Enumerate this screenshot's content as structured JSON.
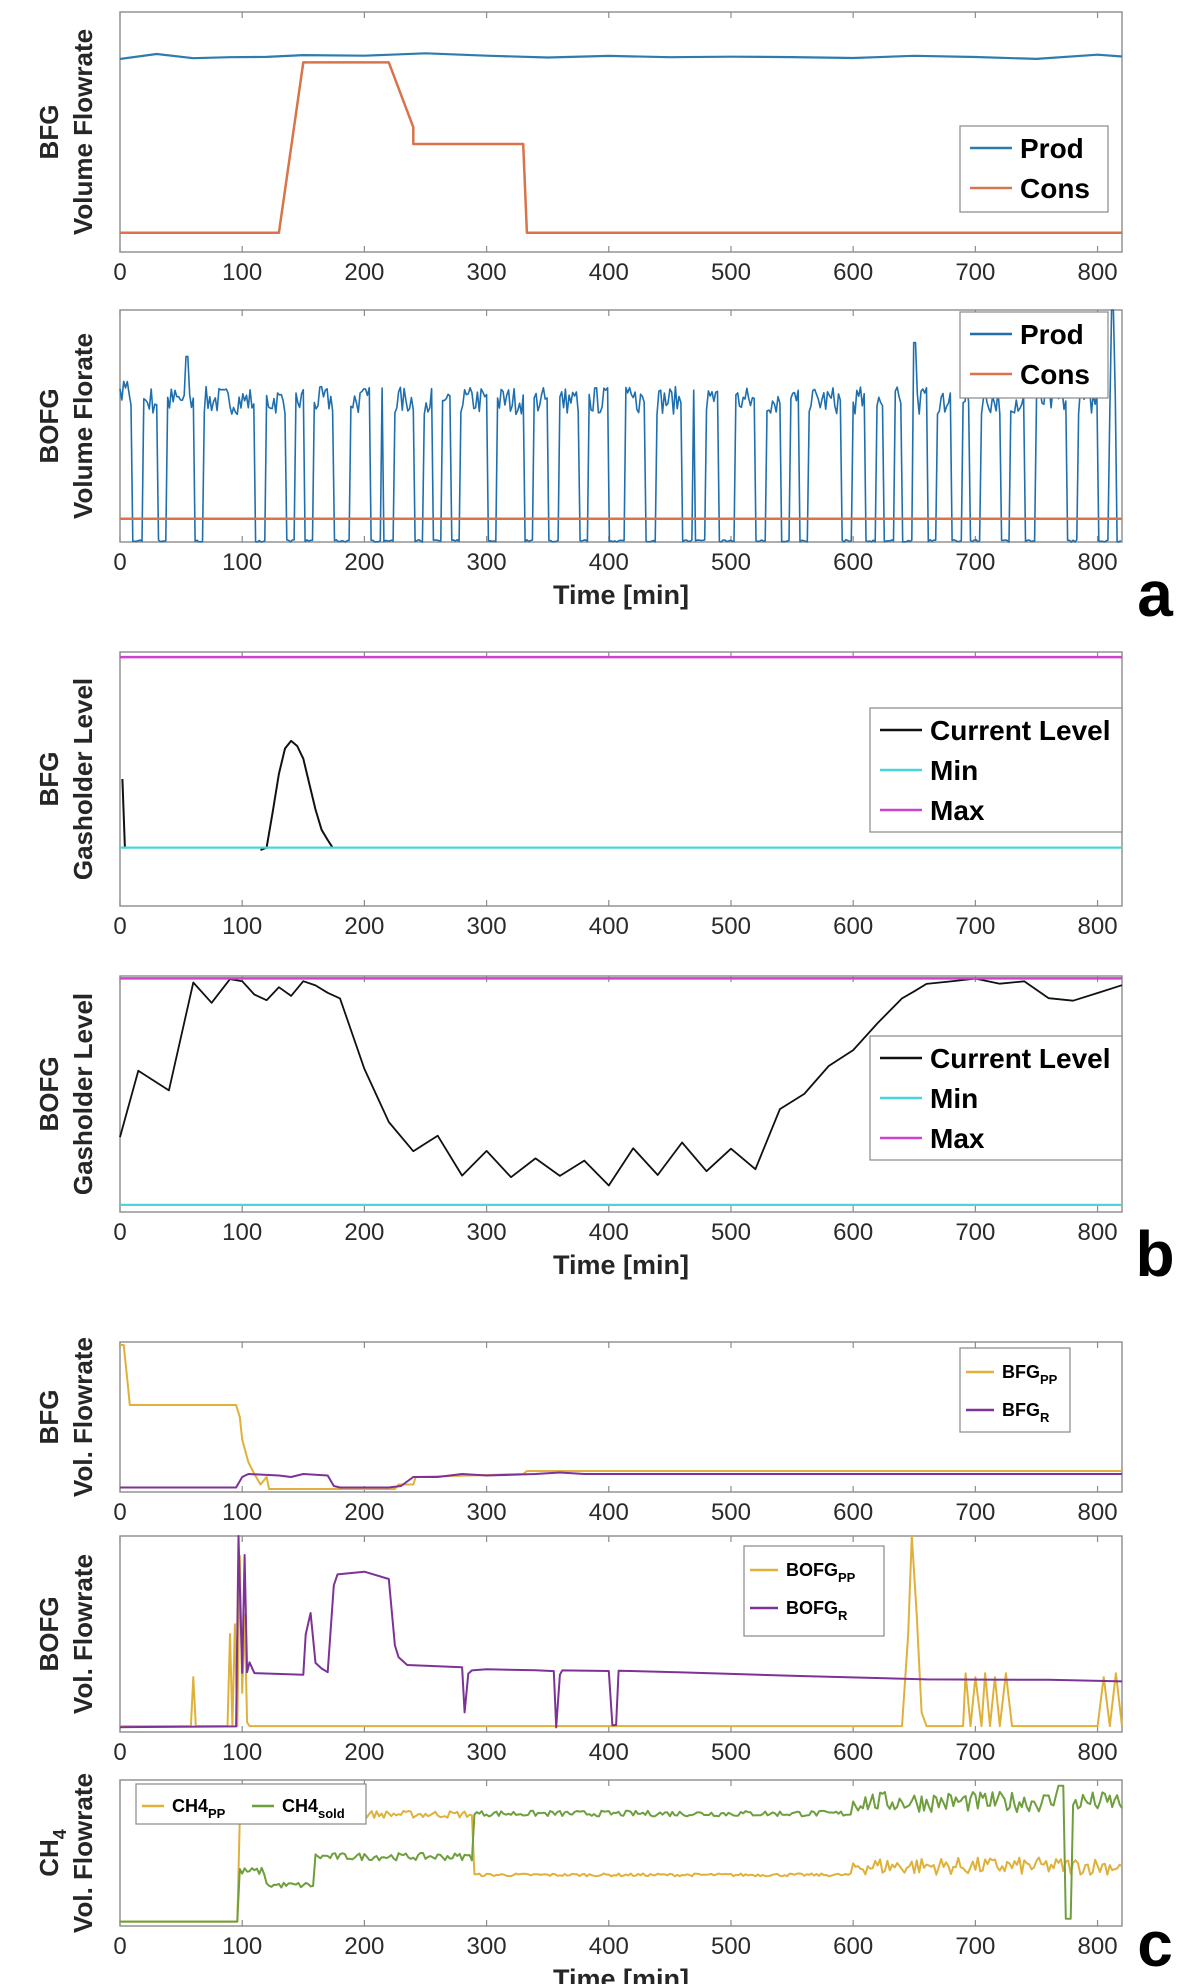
{
  "colors": {
    "prod": "#2e7cae",
    "cons": "#d9734a",
    "black": "#111111",
    "cyan": "#49d6d9",
    "magenta": "#cc44cc",
    "yellow": "#e0b13a",
    "purple": "#7d3396",
    "green": "#6e9f3d",
    "axis": "#8c8c8c"
  },
  "panel_labels": [
    "a",
    "b",
    "c"
  ],
  "chart_data": [
    {
      "type": "line",
      "id": "a1",
      "xlim": [
        0,
        820
      ],
      "ylim": [
        0,
        1
      ],
      "xticks": [
        0,
        100,
        200,
        300,
        400,
        500,
        600,
        700,
        800
      ],
      "show_xticks": true,
      "ylabel": [
        "BFG",
        "Volume Flowrate"
      ],
      "xlabel": "",
      "legend": {
        "labels": [
          "Prod",
          "Cons"
        ]
      },
      "series": [
        {
          "name": "Prod",
          "color": "#2e7cae",
          "width": 2.2,
          "x": [
            0,
            30,
            60,
            90,
            120,
            150,
            200,
            250,
            300,
            350,
            400,
            450,
            500,
            550,
            600,
            650,
            700,
            750,
            800,
            820
          ],
          "y": [
            0.81,
            0.82,
            0.81,
            0.815,
            0.81,
            0.82,
            0.82,
            0.825,
            0.815,
            0.81,
            0.815,
            0.81,
            0.81,
            0.815,
            0.81,
            0.815,
            0.81,
            0.81,
            0.82,
            0.815
          ],
          "jitter": 0.006
        },
        {
          "name": "Cons",
          "color": "#d9734a",
          "width": 2.5,
          "x": [
            0,
            130,
            150,
            220,
            240,
            240,
            330,
            333,
            820
          ],
          "y": [
            0.08,
            0.08,
            0.79,
            0.79,
            0.52,
            0.45,
            0.45,
            0.08,
            0.08
          ]
        }
      ]
    },
    {
      "type": "line",
      "id": "a2",
      "xlim": [
        0,
        820
      ],
      "ylim": [
        0,
        1
      ],
      "xticks": [
        0,
        100,
        200,
        300,
        400,
        500,
        600,
        700,
        800
      ],
      "show_xticks": true,
      "ylabel": [
        "BOFG",
        "Volume Florate"
      ],
      "xlabel": "Time [min]",
      "legend": {
        "labels": [
          "Prod",
          "Cons"
        ]
      },
      "series": [
        {
          "name": "Prod",
          "color": "#1f6fae",
          "width": 1.6,
          "generator": "bofg_prod"
        },
        {
          "name": "Cons",
          "color": "#d9734a",
          "width": 2.5,
          "x": [
            0,
            820
          ],
          "y": [
            0.1,
            0.1
          ]
        }
      ]
    },
    {
      "type": "line",
      "id": "b1",
      "xlim": [
        0,
        820
      ],
      "ylim": [
        0,
        1
      ],
      "xticks": [
        0,
        100,
        200,
        300,
        400,
        500,
        600,
        700,
        800
      ],
      "show_xticks": true,
      "ylabel": [
        "BFG",
        "Gasholder Level"
      ],
      "xlabel": "",
      "legend": {
        "labels": [
          "Current Level",
          "Min",
          "Max"
        ]
      },
      "series": [
        {
          "name": "Current Level",
          "color": "#111111",
          "width": 2,
          "x": [
            2,
            4,
            5
          ],
          "y": [
            0.5,
            0.23,
            0.23
          ]
        },
        {
          "name": "Current Level",
          "color": "#111111",
          "width": 2,
          "x": [
            115,
            120,
            125,
            130,
            135,
            140,
            145,
            150,
            155,
            160,
            165,
            170,
            174
          ],
          "y": [
            0.22,
            0.23,
            0.37,
            0.52,
            0.62,
            0.65,
            0.63,
            0.58,
            0.48,
            0.38,
            0.3,
            0.26,
            0.23
          ]
        },
        {
          "name": "Min",
          "color": "#49d6d9",
          "width": 2.2,
          "x": [
            0,
            820
          ],
          "y": [
            0.23,
            0.23
          ]
        },
        {
          "name": "Max",
          "color": "#cc44cc",
          "width": 2.5,
          "x": [
            0,
            820
          ],
          "y": [
            0.98,
            0.98
          ]
        }
      ]
    },
    {
      "type": "line",
      "id": "b2",
      "xlim": [
        0,
        820
      ],
      "ylim": [
        0,
        1
      ],
      "xticks": [
        0,
        100,
        200,
        300,
        400,
        500,
        600,
        700,
        800
      ],
      "show_xticks": true,
      "ylabel": [
        "BOFG",
        "Gasholder Level"
      ],
      "xlabel": "Time [min]",
      "legend": {
        "labels": [
          "Current Level",
          "Min",
          "Max"
        ]
      },
      "series": [
        {
          "name": "Current Level",
          "color": "#111111",
          "width": 1.8,
          "x": [
            0,
            15,
            40,
            60,
            75,
            90,
            100,
            110,
            120,
            130,
            140,
            150,
            160,
            170,
            180,
            200,
            220,
            240,
            260,
            280,
            300,
            320,
            340,
            360,
            380,
            400,
            420,
            440,
            460,
            480,
            500,
            520,
            540,
            560,
            580,
            600,
            620,
            640,
            650,
            660,
            680,
            700,
            720,
            740,
            760,
            780,
            800,
            820
          ],
          "y": [
            0.33,
            0.58,
            0.5,
            0.97,
            0.9,
            0.99,
            0.97,
            0.93,
            0.9,
            0.96,
            0.92,
            0.99,
            0.98,
            0.94,
            0.9,
            0.6,
            0.4,
            0.24,
            0.34,
            0.17,
            0.25,
            0.14,
            0.22,
            0.15,
            0.2,
            0.13,
            0.28,
            0.17,
            0.3,
            0.18,
            0.28,
            0.2,
            0.45,
            0.5,
            0.6,
            0.7,
            0.8,
            0.9,
            0.95,
            0.95,
            0.97,
            0.98,
            0.95,
            0.97,
            0.92,
            0.9,
            0.93,
            0.97
          ],
          "jitter": 0.02
        },
        {
          "name": "Min",
          "color": "#49d6d9",
          "width": 2.2,
          "x": [
            0,
            820
          ],
          "y": [
            0.03,
            0.03
          ]
        },
        {
          "name": "Max",
          "color": "#cc44cc",
          "width": 2.5,
          "x": [
            0,
            820
          ],
          "y": [
            0.99,
            0.99
          ]
        }
      ]
    },
    {
      "type": "line",
      "id": "c1",
      "xlim": [
        0,
        820
      ],
      "ylim": [
        0,
        1
      ],
      "xticks": [
        0,
        100,
        200,
        300,
        400,
        500,
        600,
        700,
        800
      ],
      "show_xticks": true,
      "ylabel": [
        "BFG",
        "Vol. Flowrate"
      ],
      "xlabel": "",
      "legend": {
        "labels": [
          "BFG",
          "BFG"
        ],
        "subscripts": [
          "PP",
          "R"
        ]
      },
      "series": [
        {
          "name": "BFG_PP",
          "color": "#e0b13a",
          "width": 2,
          "x": [
            0,
            3,
            6,
            8,
            95,
            98,
            100,
            105,
            110,
            115,
            120,
            122,
            225,
            228,
            240,
            242,
            330,
            333,
            820
          ],
          "y": [
            0.98,
            0.98,
            0.75,
            0.58,
            0.58,
            0.5,
            0.35,
            0.2,
            0.12,
            0.05,
            0.1,
            0.02,
            0.02,
            0.05,
            0.05,
            0.1,
            0.12,
            0.14,
            0.14
          ]
        },
        {
          "name": "BFG_R",
          "color": "#7d3396",
          "width": 2,
          "x": [
            0,
            95,
            100,
            105,
            130,
            140,
            150,
            170,
            175,
            180,
            200,
            220,
            230,
            240,
            260,
            280,
            300,
            340,
            360,
            380,
            400,
            420,
            820
          ],
          "y": [
            0.03,
            0.03,
            0.1,
            0.12,
            0.11,
            0.1,
            0.12,
            0.11,
            0.04,
            0.03,
            0.03,
            0.03,
            0.04,
            0.1,
            0.1,
            0.12,
            0.11,
            0.12,
            0.13,
            0.12,
            0.12,
            0.12,
            0.12
          ]
        }
      ]
    },
    {
      "type": "line",
      "id": "c2",
      "xlim": [
        0,
        820
      ],
      "ylim": [
        0,
        1
      ],
      "xticks": [
        0,
        100,
        200,
        300,
        400,
        500,
        600,
        700,
        800
      ],
      "show_xticks": true,
      "ylabel": [
        "BOFG",
        "Vol. Flowrate"
      ],
      "xlabel": "",
      "legend": {
        "labels": [
          "BOFG",
          "BOFG"
        ],
        "subscripts": [
          "PP",
          "R"
        ]
      },
      "series": [
        {
          "name": "BOFG_PP",
          "color": "#e0b13a",
          "width": 2,
          "x": [
            0,
            58,
            60,
            62,
            88,
            90,
            92,
            94,
            96,
            98,
            100,
            102,
            104,
            106,
            640,
            645,
            648,
            652,
            656,
            660,
            690,
            692,
            696,
            700,
            705,
            708,
            712,
            716,
            720,
            725,
            730,
            800,
            805,
            810,
            815,
            820
          ],
          "y": [
            0.03,
            0.03,
            0.28,
            0.03,
            0.03,
            0.5,
            0.03,
            0.55,
            0.03,
            0.9,
            0.2,
            0.6,
            0.05,
            0.03,
            0.03,
            0.5,
            1.0,
            0.6,
            0.1,
            0.03,
            0.03,
            0.3,
            0.03,
            0.28,
            0.03,
            0.3,
            0.03,
            0.28,
            0.03,
            0.3,
            0.03,
            0.03,
            0.28,
            0.03,
            0.3,
            0.03
          ]
        },
        {
          "name": "BOFG_R",
          "color": "#7d3396",
          "width": 2,
          "x": [
            0,
            95,
            97,
            100,
            102,
            104,
            106,
            110,
            150,
            152,
            156,
            160,
            165,
            170,
            175,
            178,
            200,
            220,
            225,
            228,
            235,
            280,
            282,
            285,
            288,
            300,
            340,
            355,
            357,
            360,
            362,
            400,
            403,
            406,
            408,
            460,
            560,
            660,
            760,
            820
          ],
          "y": [
            0.03,
            0.03,
            1.0,
            0.3,
            0.9,
            0.3,
            0.35,
            0.3,
            0.3,
            0.5,
            0.6,
            0.35,
            0.32,
            0.3,
            0.75,
            0.8,
            0.82,
            0.78,
            0.45,
            0.38,
            0.35,
            0.33,
            0.1,
            0.3,
            0.32,
            0.32,
            0.32,
            0.31,
            0.03,
            0.3,
            0.31,
            0.31,
            0.03,
            0.03,
            0.31,
            0.3,
            0.28,
            0.27,
            0.26,
            0.26
          ],
          "jitter": 0.008
        }
      ]
    },
    {
      "type": "line",
      "id": "c3",
      "xlim": [
        0,
        820
      ],
      "ylim": [
        0,
        1
      ],
      "xticks": [
        0,
        100,
        200,
        300,
        400,
        500,
        600,
        700,
        800
      ],
      "show_xticks": true,
      "ylabel": [
        "CH",
        "Vol. Flowrate"
      ],
      "ylabel_sub": "4",
      "xlabel": "Time [min]",
      "legend": {
        "labels": [
          "CH4",
          "CH4"
        ],
        "subscripts": [
          "PP",
          "sold"
        ]
      },
      "series": [
        {
          "name": "CH4_PP",
          "color": "#e0b13a",
          "width": 2,
          "generator": "ch4_pp"
        },
        {
          "name": "CH4_sold",
          "color": "#6e9f3d",
          "width": 2,
          "generator": "ch4_sold"
        }
      ]
    }
  ]
}
